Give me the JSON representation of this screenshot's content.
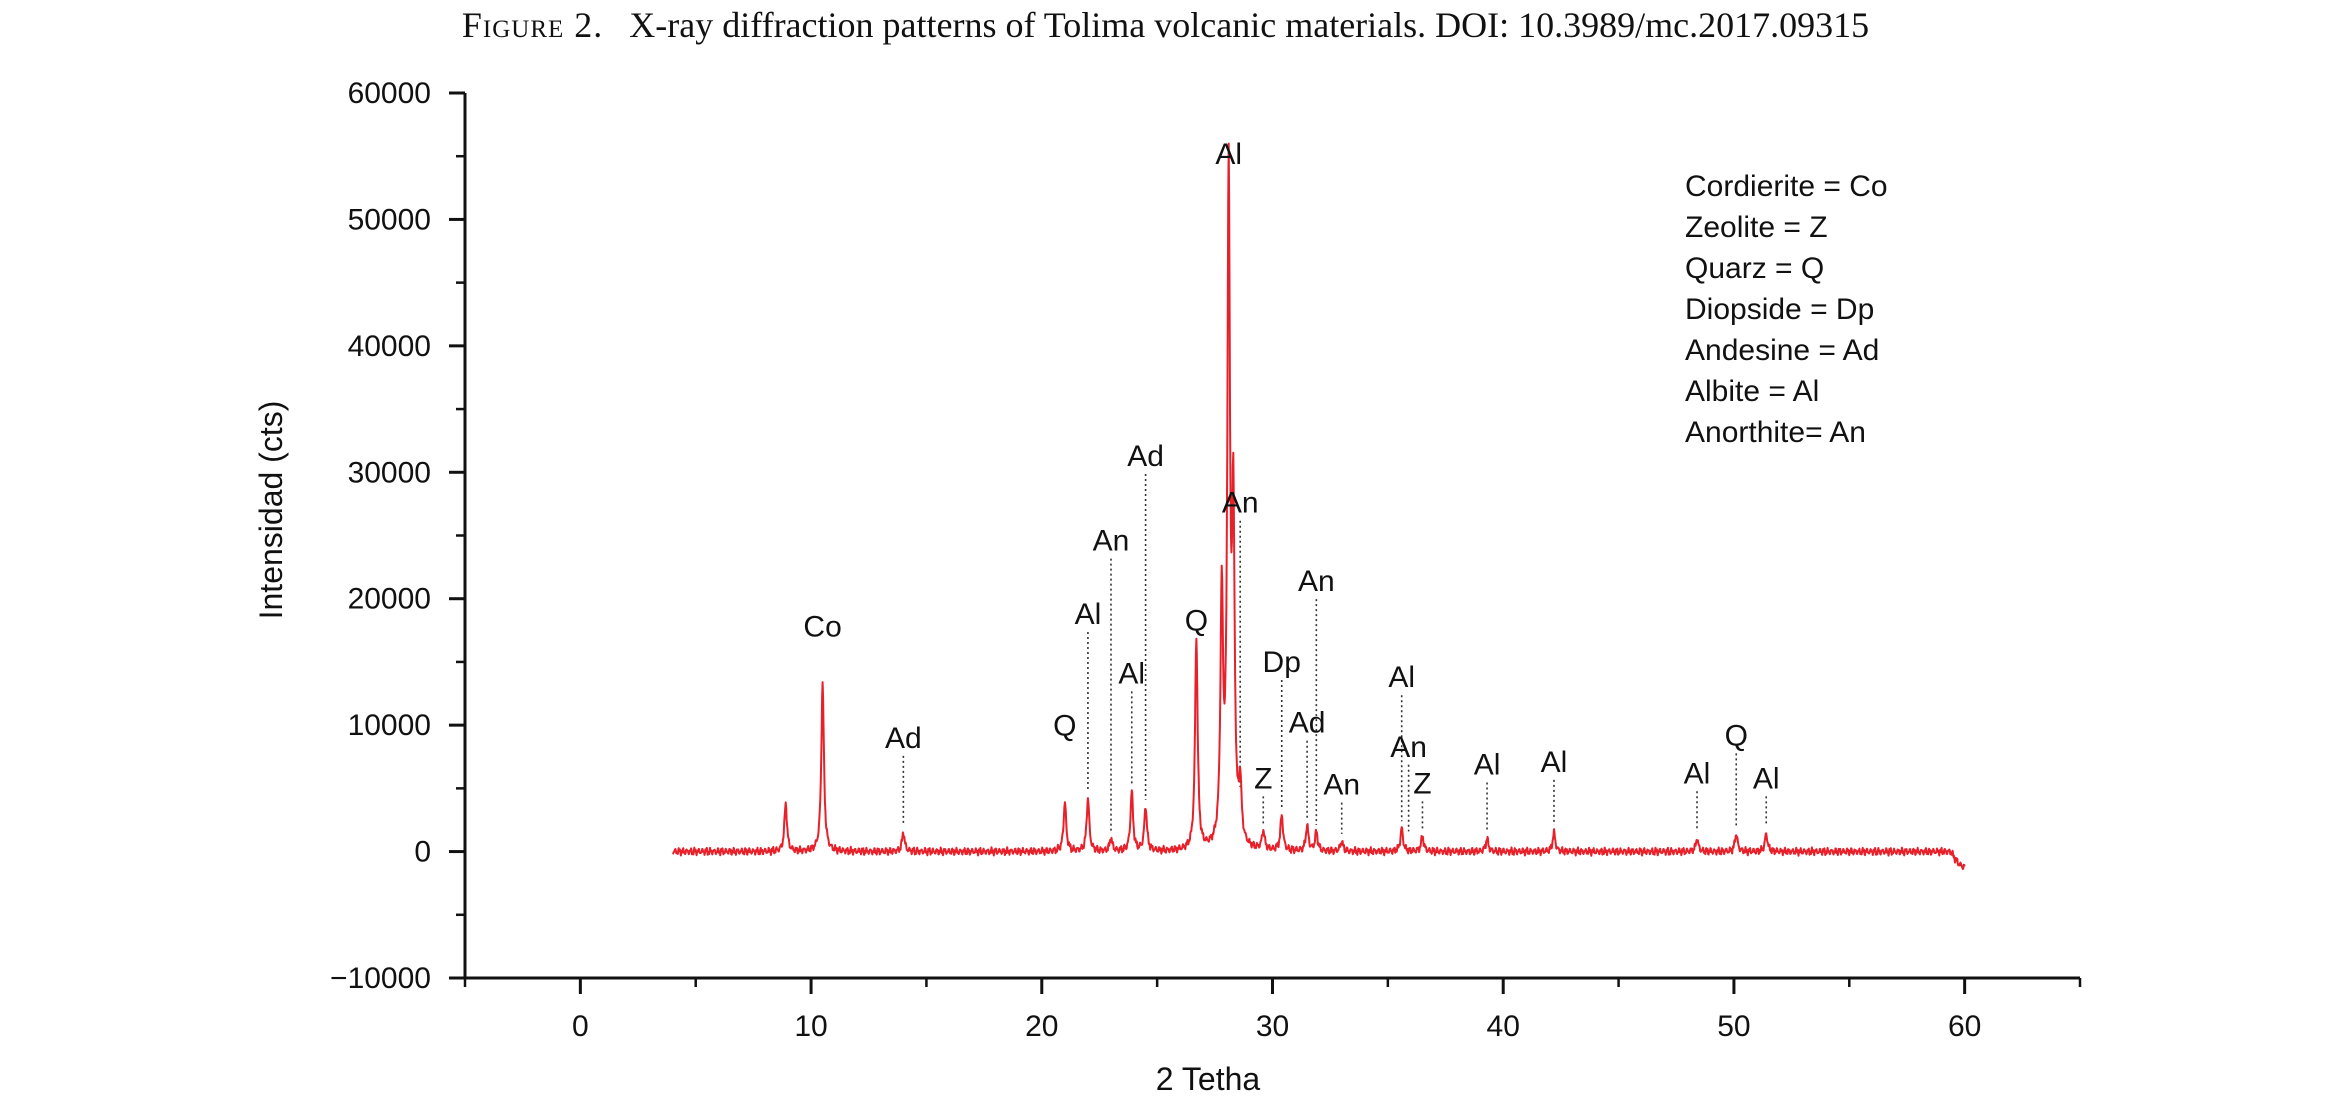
{
  "caption": {
    "figure_number": "Figure 2.",
    "text": "X-ray diffraction patterns of Tolima volcanic materials. DOI: 10.3989/mc.2017.09315"
  },
  "chart_data": {
    "type": "line",
    "title": "",
    "xlabel": "2 Tetha",
    "ylabel": "Intensidad (cts)",
    "xlim": [
      -5,
      65
    ],
    "ylim": [
      -10000,
      60000
    ],
    "x_ticks": [
      0,
      10,
      20,
      30,
      40,
      50,
      60
    ],
    "y_ticks": [
      -10000,
      0,
      10000,
      20000,
      30000,
      40000,
      50000,
      60000
    ],
    "x_tick_labels": [
      "0",
      "10",
      "20",
      "30",
      "40",
      "50",
      "60"
    ],
    "y_tick_labels": [
      "−10000",
      "0",
      "10000",
      "20000",
      "30000",
      "40000",
      "50000",
      "60000"
    ],
    "grid": false,
    "legend_position": "top-right",
    "line_color": "#e8202a",
    "series": [
      {
        "x": [
          4.0,
          8.9,
          10.5,
          14.0,
          21.0,
          22.0,
          23.0,
          23.9,
          24.5,
          26.7,
          27.8,
          28.1,
          28.3,
          28.6,
          29.6,
          30.4,
          31.5,
          31.9,
          33.0,
          35.6,
          36.5,
          39.3,
          42.2,
          48.4,
          50.1,
          51.4,
          60.0
        ],
        "y": [
          0,
          3800,
          13300,
          1500,
          3900,
          4200,
          1000,
          4700,
          3500,
          16800,
          19500,
          52300,
          25500,
          4500,
          1500,
          2800,
          2000,
          1500,
          800,
          1800,
          1200,
          1000,
          1500,
          1000,
          1400,
          1400,
          -1200
        ]
      }
    ],
    "legend_entries": [
      "Cordierite = Co",
      "Zeolite = Z",
      "Quarz = Q",
      "Diopside = Dp",
      "Andesine = Ad",
      "Albite = Al",
      "Anorthite= An"
    ],
    "peak_labels": [
      {
        "text": "Co",
        "x": 10.5,
        "y": 13300
      },
      {
        "text": "Ad",
        "x": 14.0,
        "y": 1500
      },
      {
        "text": "Q",
        "x": 21.0,
        "y": 3900
      },
      {
        "text": "Al",
        "x": 22.0,
        "y": 4200
      },
      {
        "text": "An",
        "x": 23.0,
        "y": 1000
      },
      {
        "text": "Al",
        "x": 23.9,
        "y": 4700
      },
      {
        "text": "Ad",
        "x": 24.5,
        "y": 3500
      },
      {
        "text": "Q",
        "x": 26.7,
        "y": 16800
      },
      {
        "text": "Al",
        "x": 28.1,
        "y": 52300
      },
      {
        "text": "An",
        "x": 28.6,
        "y": 4500
      },
      {
        "text": "Z",
        "x": 29.6,
        "y": 1500
      },
      {
        "text": "Dp",
        "x": 30.4,
        "y": 2800
      },
      {
        "text": "Ad",
        "x": 31.5,
        "y": 2000
      },
      {
        "text": "An",
        "x": 31.9,
        "y": 1500
      },
      {
        "text": "An",
        "x": 33.0,
        "y": 800
      },
      {
        "text": "Al",
        "x": 35.6,
        "y": 1800
      },
      {
        "text": "An",
        "x": 35.9,
        "y": 1000
      },
      {
        "text": "Z",
        "x": 36.5,
        "y": 1200
      },
      {
        "text": "Al",
        "x": 39.3,
        "y": 1000
      },
      {
        "text": "Al",
        "x": 42.2,
        "y": 1500
      },
      {
        "text": "Al",
        "x": 48.4,
        "y": 1000
      },
      {
        "text": "Q",
        "x": 50.1,
        "y": 1400
      },
      {
        "text": "Al",
        "x": 51.4,
        "y": 1400
      }
    ]
  }
}
